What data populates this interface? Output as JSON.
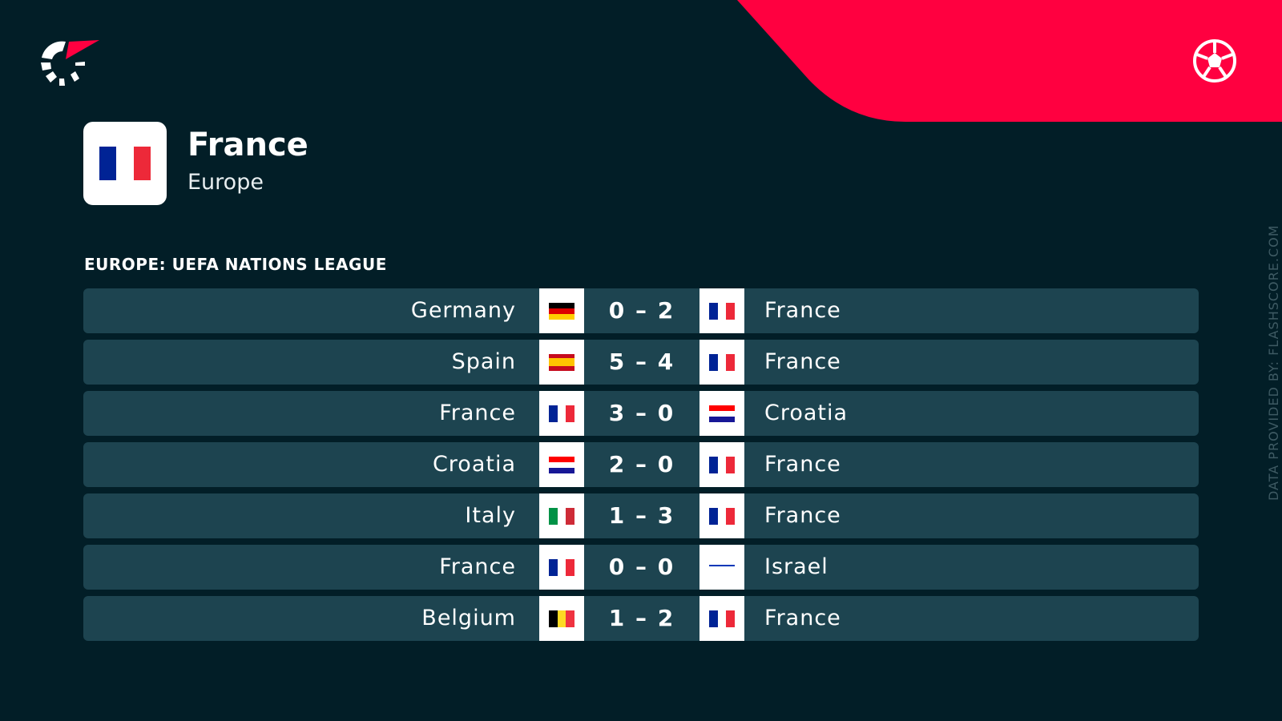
{
  "header": {
    "title": "France",
    "subtitle": "Europe",
    "league": "EUROPE: UEFA NATIONS LEAGUE",
    "credit": "DATA PROVIDED BY: FLASHSCORE.COM"
  },
  "colors": {
    "background": "#021e27",
    "row": "#1d4450",
    "accent": "#ff0040"
  },
  "icons": {
    "logo": "flashscore-logo",
    "sport": "soccer-ball-icon"
  },
  "flags": {
    "France": [
      "#002395",
      "#ffffff",
      "#ed2939"
    ],
    "Germany": [
      "#000000",
      "#dd0000",
      "#ffce00"
    ],
    "Spain": [
      "#c60b1e",
      "#ffc400",
      "#c60b1e"
    ],
    "Croatia": [
      "#ff0000",
      "#ffffff",
      "#171796"
    ],
    "Italy": [
      "#009246",
      "#ffffff",
      "#ce2b37"
    ],
    "Israel": [
      "#ffffff",
      "#0038b8",
      "#ffffff"
    ],
    "Belgium": [
      "#000000",
      "#fdda24",
      "#ef3340"
    ]
  },
  "matches": [
    {
      "home": "Germany",
      "score": "0 – 2",
      "away": "France"
    },
    {
      "home": "Spain",
      "score": "5 – 4",
      "away": "France"
    },
    {
      "home": "France",
      "score": "3 – 0",
      "away": "Croatia"
    },
    {
      "home": "Croatia",
      "score": "2 – 0",
      "away": "France"
    },
    {
      "home": "Italy",
      "score": "1 – 3",
      "away": "France"
    },
    {
      "home": "France",
      "score": "0 – 0",
      "away": "Israel"
    },
    {
      "home": "Belgium",
      "score": "1 – 2",
      "away": "France"
    }
  ]
}
